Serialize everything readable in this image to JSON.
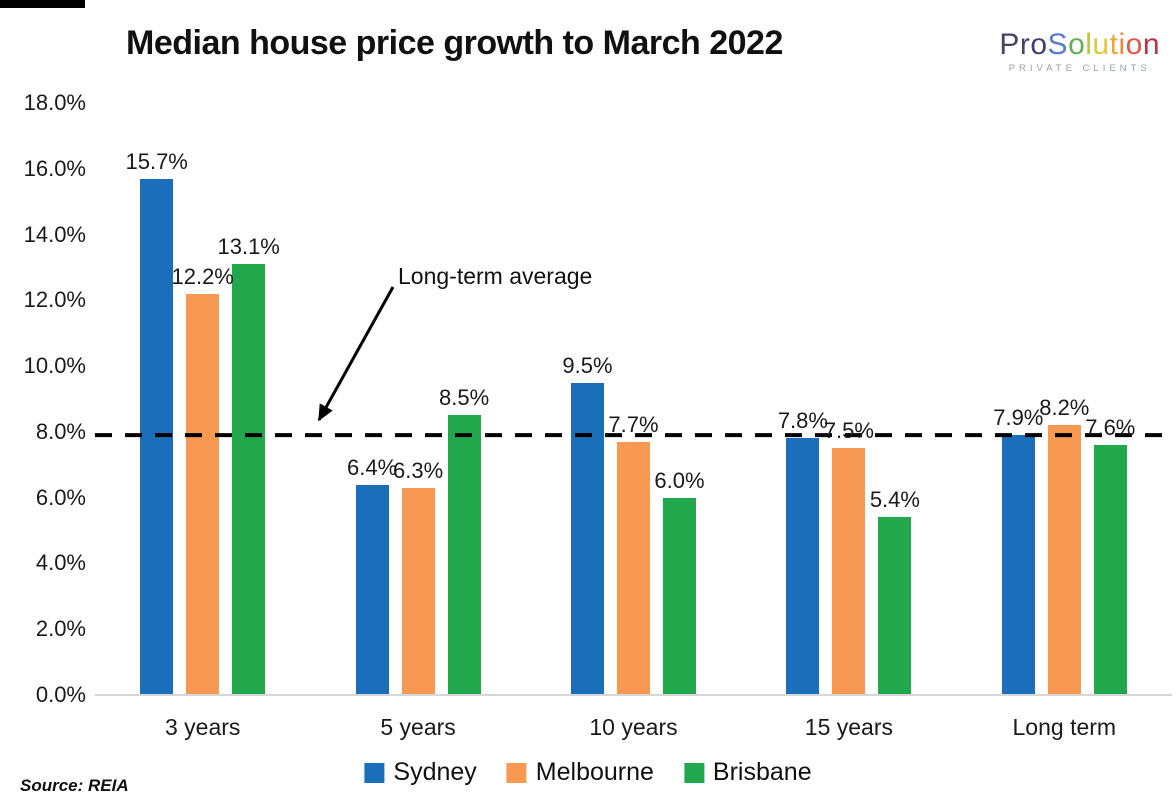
{
  "header": {
    "title": "Median house price growth to March 2022",
    "logo": {
      "name": "ProSolution",
      "letters": [
        {
          "char": "P",
          "color": "#474363"
        },
        {
          "char": "r",
          "color": "#474363"
        },
        {
          "char": "o",
          "color": "#423d72"
        },
        {
          "char": "S",
          "color": "#5b7ccc"
        },
        {
          "char": "o",
          "color": "#63ad57"
        },
        {
          "char": "l",
          "color": "#b8c83e"
        },
        {
          "char": "u",
          "color": "#e3c83e"
        },
        {
          "char": "t",
          "color": "#eaa93c"
        },
        {
          "char": "i",
          "color": "#ee8742"
        },
        {
          "char": "o",
          "color": "#e2574a"
        },
        {
          "char": "n",
          "color": "#b9354b"
        }
      ],
      "subtext": "PRIVATE CLIENTS"
    }
  },
  "chart_data": {
    "type": "bar",
    "title": "Median house price growth to March 2022",
    "categories": [
      "3 years",
      "5 years",
      "10 years",
      "15 years",
      "Long term"
    ],
    "series": [
      {
        "name": "Sydney",
        "color": "#1B6FBA",
        "values": [
          15.7,
          6.4,
          9.5,
          7.8,
          7.9
        ]
      },
      {
        "name": "Melbourne",
        "color": "#F79952",
        "values": [
          12.2,
          6.3,
          7.7,
          7.5,
          8.2
        ]
      },
      {
        "name": "Brisbane",
        "color": "#21A84D",
        "values": [
          13.1,
          8.5,
          6.0,
          5.4,
          7.6
        ]
      }
    ],
    "ylim": [
      0,
      18
    ],
    "ytick_step": 2,
    "yticks": [
      {
        "value": 18,
        "label": "18.0%"
      },
      {
        "value": 16,
        "label": "16.0%"
      },
      {
        "value": 14,
        "label": "14.0%"
      },
      {
        "value": 12,
        "label": "12.0%"
      },
      {
        "value": 10,
        "label": "10.0%"
      },
      {
        "value": 8,
        "label": "8.0%"
      },
      {
        "value": 6,
        "label": "6.0%"
      },
      {
        "value": 4,
        "label": "4.0%"
      },
      {
        "value": 2,
        "label": "2.0%"
      },
      {
        "value": 0,
        "label": "0.0%"
      }
    ],
    "data_label_format": "0.0%",
    "reference_line": {
      "value": 7.9,
      "label": "Long-term average",
      "style": "dashed",
      "color": "#000000"
    },
    "legend_position": "bottom",
    "gridlines": false,
    "axis_line_color": "#d6d6d6",
    "text_color": "#1a1a1a"
  },
  "footer": {
    "source": "Source: REIA"
  }
}
